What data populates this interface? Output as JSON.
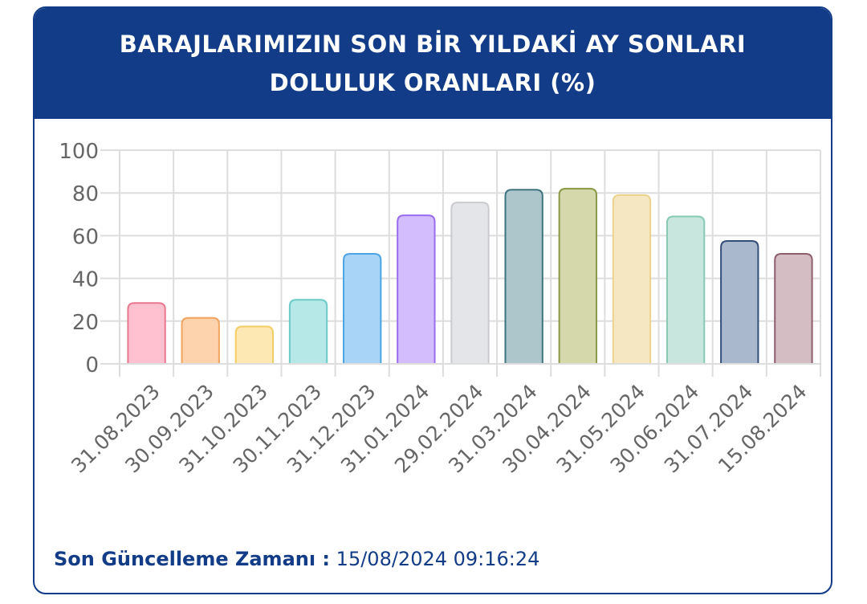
{
  "header": {
    "title_line1": "BARAJLARIMIZIN SON BİR YILDAKİ AY SONLARI",
    "title_line2": "DOLULUK ORANLARI (%)"
  },
  "footer": {
    "label": "Son Güncelleme Zamanı :",
    "value": "15/08/2024 09:16:24"
  },
  "chart_data": {
    "type": "bar",
    "title": "BARAJLARIMIZIN SON BİR YILDAKİ AY SONLARI DOLULUK ORANLARI (%)",
    "xlabel": "",
    "ylabel": "",
    "ylim": [
      0,
      100
    ],
    "yticks": [
      0,
      20,
      40,
      60,
      80,
      100
    ],
    "grid": true,
    "legend": "none",
    "categories": [
      "31.08.2023",
      "30.09.2023",
      "31.10.2023",
      "30.11.2023",
      "31.12.2023",
      "31.01.2024",
      "29.02.2024",
      "31.03.2024",
      "30.04.2024",
      "31.05.2024",
      "30.06.2024",
      "31.07.2024",
      "15.08.2024"
    ],
    "values": [
      28.5,
      21.5,
      17.5,
      30,
      51.5,
      69.5,
      75.5,
      81.5,
      82,
      79,
      69,
      57.5,
      51.5
    ],
    "colors": {
      "fill": [
        "#ffc0cf",
        "#fcd3ad",
        "#fde8b4",
        "#b5e8e6",
        "#a8d4f7",
        "#d3bdfd",
        "#e4e5e8",
        "#acc6cc",
        "#d4d8ab",
        "#f6e7c3",
        "#c8e6dd",
        "#a9b8cc",
        "#d4bec4"
      ],
      "stroke": [
        "#e8788f",
        "#f0a45e",
        "#f3cd63",
        "#6ccbc7",
        "#4da4e3",
        "#9b6cf0",
        "#c9cbcf",
        "#3e7380",
        "#8a9945",
        "#ecd28a",
        "#86c9b4",
        "#324f7a",
        "#8f5d6c"
      ]
    }
  }
}
